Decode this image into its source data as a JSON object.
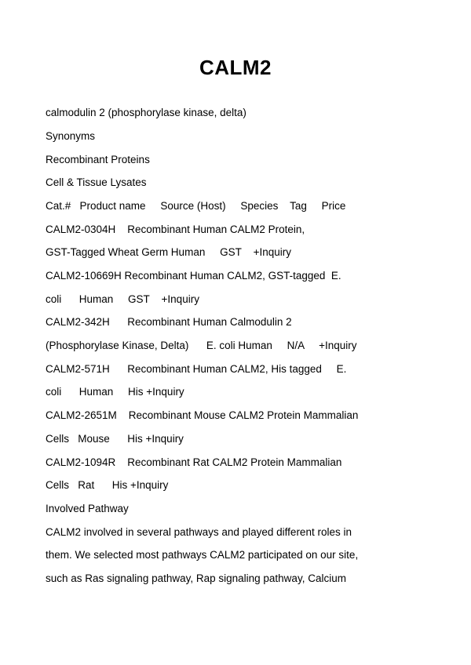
{
  "title": "CALM2",
  "lines": [
    "calmodulin 2 (phosphorylase kinase, delta)",
    "Synonyms",
    "Recombinant Proteins",
    "Cell & Tissue Lysates",
    "Cat.#   Product name     Source (Host)     Species    Tag     Price",
    "CALM2-0304H    Recombinant Human CALM2 Protein,",
    "GST-Tagged Wheat Germ Human     GST    +Inquiry",
    "CALM2-10669H Recombinant Human CALM2, GST-tagged  E.",
    "coli      Human     GST    +Inquiry",
    "CALM2-342H      Recombinant Human Calmodulin 2",
    "(Phosphorylase Kinase, Delta)      E. coli Human     N/A     +Inquiry",
    "CALM2-571H      Recombinant Human CALM2, His tagged     E.",
    "coli      Human     His +Inquiry",
    "CALM2-2651M    Recombinant Mouse CALM2 Protein Mammalian",
    "Cells   Mouse      His +Inquiry",
    "CALM2-1094R    Recombinant Rat CALM2 Protein Mammalian",
    "Cells   Rat      His +Inquiry",
    "Involved Pathway",
    "CALM2 involved in several pathways and played different roles in",
    "them. We selected most pathways CALM2 participated on our site,",
    "such as Ras signaling pathway, Rap signaling pathway, Calcium"
  ]
}
